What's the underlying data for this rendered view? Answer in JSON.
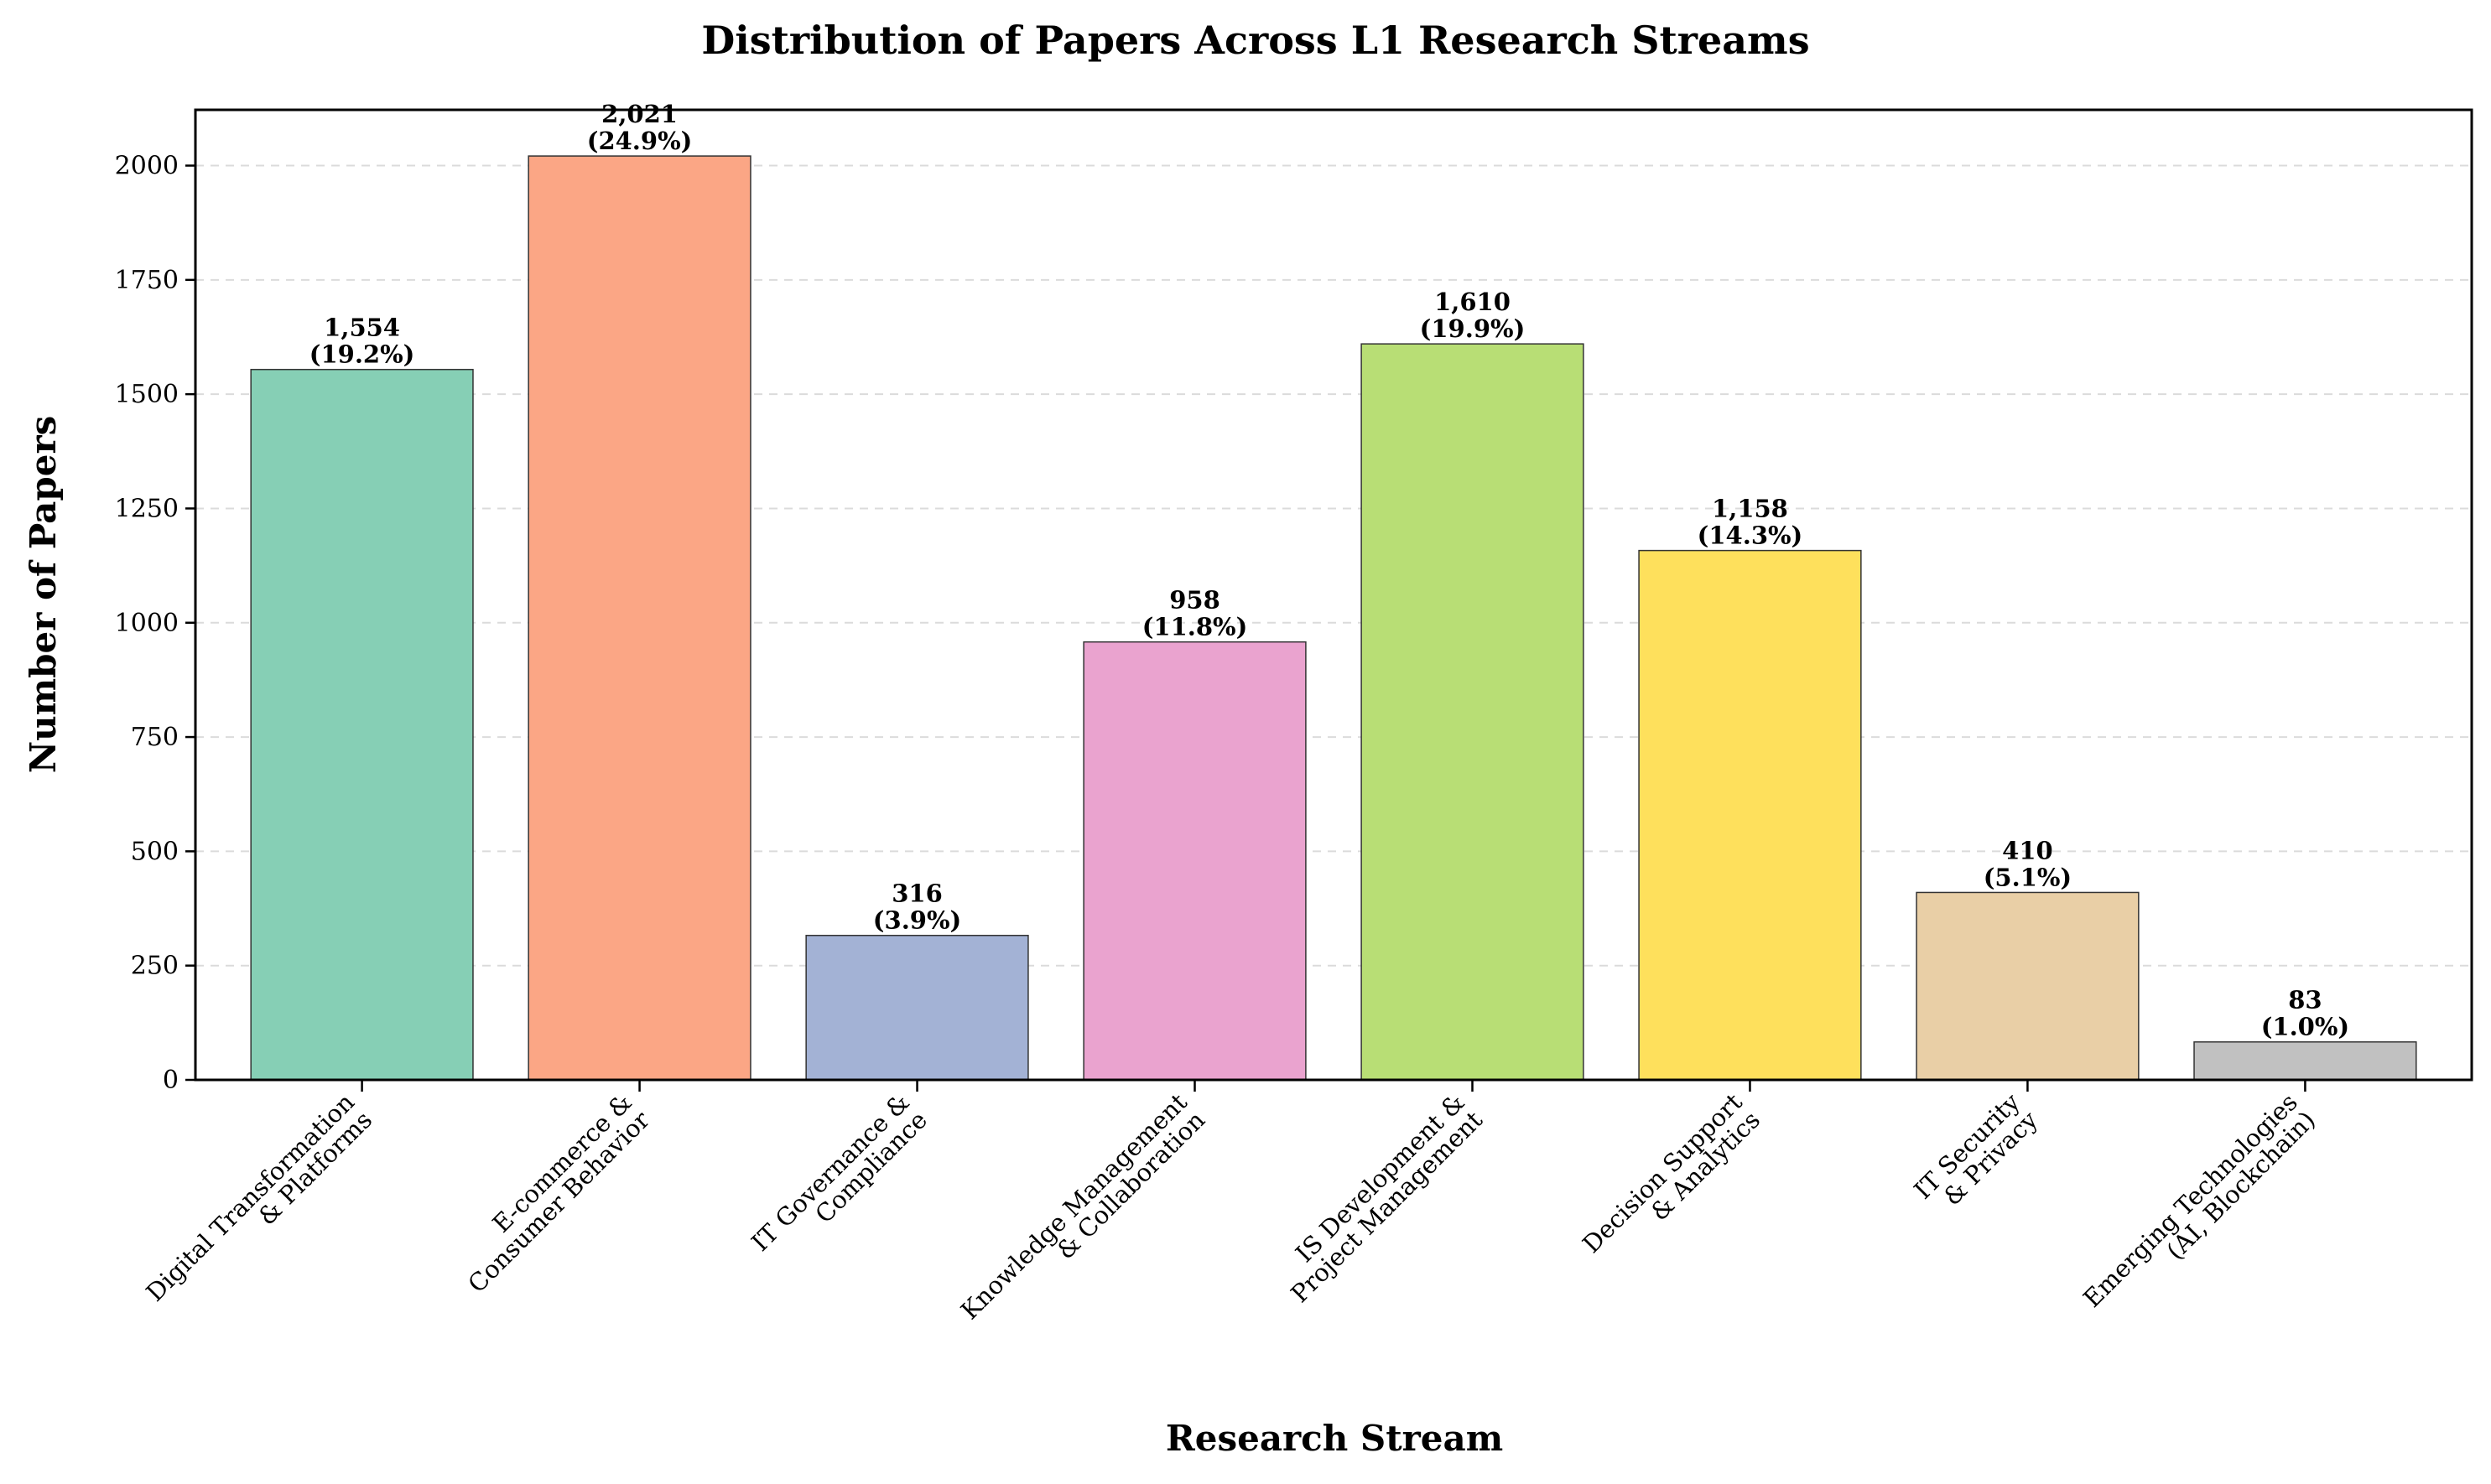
{
  "chart_data": {
    "type": "bar",
    "title": "Distribution of Papers Across L1 Research Streams",
    "xlabel": "Research Stream",
    "ylabel": "Number of Papers",
    "categories": [
      [
        "Digital Transformation",
        "& Platforms"
      ],
      [
        "E-commerce &",
        "Consumer Behavior"
      ],
      [
        "IT Governance &",
        "Compliance"
      ],
      [
        "Knowledge Management",
        "& Collaboration"
      ],
      [
        "IS Development &",
        "Project Management"
      ],
      [
        "Decision Support",
        "& Analytics"
      ],
      [
        "IT Security",
        "& Privacy"
      ],
      [
        "Emerging Technologies",
        "(AI, Blockchain)"
      ]
    ],
    "values": [
      1554,
      2021,
      316,
      958,
      1610,
      1158,
      410,
      83
    ],
    "value_labels": [
      "1,554",
      "2,021",
      "316",
      "958",
      "1,610",
      "1,158",
      "410",
      "83"
    ],
    "percent_labels": [
      "(19.2%)",
      "(24.9%)",
      "(3.9%)",
      "(11.8%)",
      "(19.9%)",
      "(14.3%)",
      "(5.1%)",
      "(1.0%)"
    ],
    "colors": [
      "#86cfb5",
      "#fba685",
      "#a3b2d5",
      "#eaa3cf",
      "#b8de75",
      "#fee05c",
      "#e9cfa6",
      "#c1c1c1"
    ],
    "ylim": [
      0,
      2122
    ],
    "yticks": [
      0,
      250,
      500,
      750,
      1000,
      1250,
      1500,
      1750,
      2000
    ],
    "grid": "y-dashed"
  }
}
